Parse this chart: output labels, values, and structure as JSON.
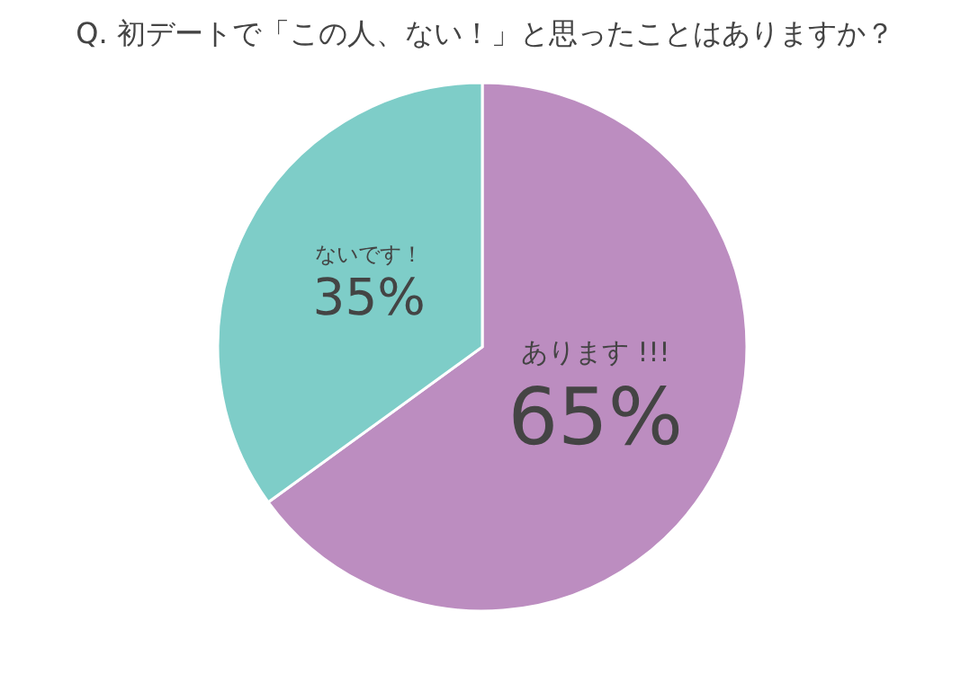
{
  "chart_data": {
    "type": "pie",
    "title": "Q. 初デートで「この人、ない！」と思ったことはありますか？",
    "categories": [
      "あります !!!",
      "ないです！"
    ],
    "values": [
      65,
      35
    ],
    "colors": [
      "#bc8dc0",
      "#7ecdc8"
    ],
    "value_labels": [
      "65%",
      "35%"
    ]
  }
}
